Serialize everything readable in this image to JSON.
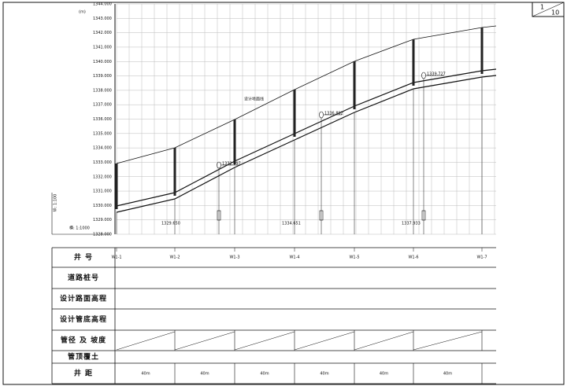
{
  "sheet": {
    "number": "1",
    "total": "10"
  },
  "axis": {
    "unit": "(m)",
    "labels": [
      "1344.000",
      "1343.000",
      "1342.000",
      "1341.000",
      "1340.000",
      "1339.000",
      "1338.000",
      "1337.000",
      "1336.000",
      "1335.000",
      "1334.000",
      "1333.000",
      "1332.000",
      "1331.000",
      "1330.000",
      "1329.000",
      "1328.000"
    ]
  },
  "scale": {
    "horizontal": "横: 1:1000",
    "vertical": "纵: 1:100"
  },
  "annotations": {
    "ground_line": "设计地面线"
  },
  "elevation_marks": [
    "1332.397",
    "1336.892",
    "1339.727"
  ],
  "invert_marks": [
    "1329.650",
    "1334.651",
    "1337.933"
  ],
  "table": {
    "row_labels": [
      "井 号",
      "道路桩号",
      "设计路面高程",
      "设计管底高程",
      "管径 及 坡度",
      "管顶覆土",
      "井 距"
    ],
    "wells": [
      "W1-1",
      "W1-2",
      "W1-3",
      "W1-4",
      "W1-5",
      "W1-6",
      "W1-7"
    ],
    "spacing": [
      "40m",
      "40m",
      "40m",
      "40m",
      "40m",
      "40m"
    ]
  }
}
